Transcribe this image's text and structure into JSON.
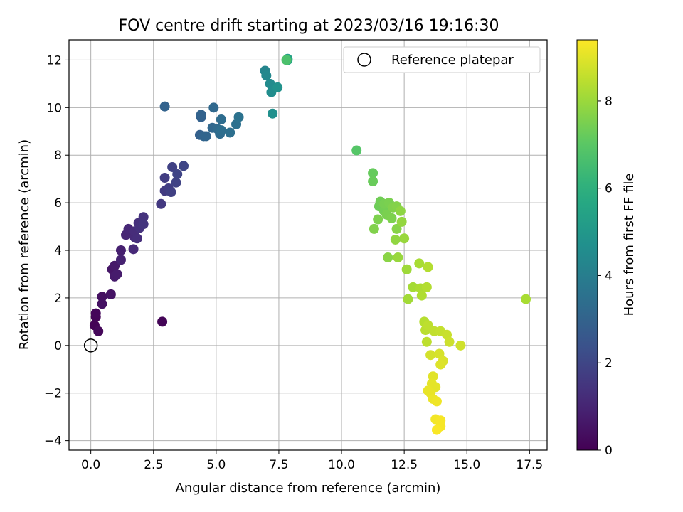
{
  "chart_data": {
    "type": "scatter",
    "title": "FOV centre drift starting at 2023/03/16 19:16:30",
    "xlabel": "Angular distance from reference (arcmin)",
    "ylabel": "Rotation from reference (arcmin)",
    "xlim": [
      -0.87,
      18.2
    ],
    "ylim": [
      -4.4,
      12.85
    ],
    "xticks": [
      0.0,
      2.5,
      5.0,
      7.5,
      10.0,
      12.5,
      15.0,
      17.5
    ],
    "xtick_labels": [
      "0.0",
      "2.5",
      "5.0",
      "7.5",
      "10.0",
      "12.5",
      "15.0",
      "17.5"
    ],
    "yticks": [
      -4,
      -2,
      0,
      2,
      4,
      6,
      8,
      10,
      12
    ],
    "ytick_labels": [
      "−4",
      "−2",
      "0",
      "2",
      "4",
      "6",
      "8",
      "10",
      "12"
    ],
    "grid": true,
    "legend": {
      "position": "top-right",
      "entries": [
        "Reference platepar"
      ]
    },
    "reference_point": {
      "x": 0,
      "y": 0
    },
    "colorbar": {
      "label": "Hours from first FF file",
      "colormap": "viridis",
      "range": [
        0,
        9.4
      ],
      "ticks": [
        0,
        2,
        4,
        6,
        8
      ],
      "tick_labels": [
        "0",
        "2",
        "4",
        "6",
        "8"
      ]
    },
    "points": [
      {
        "x": 0.15,
        "y": 0.85,
        "h": 0.05
      },
      {
        "x": 0.2,
        "y": 1.2,
        "h": 0.1
      },
      {
        "x": 0.2,
        "y": 1.35,
        "h": 0.15
      },
      {
        "x": 0.3,
        "y": 0.6,
        "h": 0.2
      },
      {
        "x": 2.85,
        "y": 1.0,
        "h": 0.1
      },
      {
        "x": 0.45,
        "y": 2.05,
        "h": 0.4
      },
      {
        "x": 0.45,
        "y": 1.75,
        "h": 0.45
      },
      {
        "x": 0.8,
        "y": 2.15,
        "h": 0.5
      },
      {
        "x": 0.85,
        "y": 3.2,
        "h": 0.6
      },
      {
        "x": 0.95,
        "y": 3.35,
        "h": 0.65
      },
      {
        "x": 0.95,
        "y": 2.9,
        "h": 0.7
      },
      {
        "x": 1.05,
        "y": 3.0,
        "h": 0.75
      },
      {
        "x": 1.2,
        "y": 4.0,
        "h": 0.85
      },
      {
        "x": 1.2,
        "y": 3.6,
        "h": 0.9
      },
      {
        "x": 1.4,
        "y": 4.65,
        "h": 1.0
      },
      {
        "x": 1.5,
        "y": 4.9,
        "h": 1.05
      },
      {
        "x": 1.7,
        "y": 4.05,
        "h": 1.1
      },
      {
        "x": 1.75,
        "y": 4.55,
        "h": 1.15
      },
      {
        "x": 1.75,
        "y": 4.8,
        "h": 1.2
      },
      {
        "x": 1.85,
        "y": 4.5,
        "h": 1.25
      },
      {
        "x": 1.9,
        "y": 5.15,
        "h": 1.3
      },
      {
        "x": 1.95,
        "y": 4.95,
        "h": 1.35
      },
      {
        "x": 2.1,
        "y": 5.4,
        "h": 1.4
      },
      {
        "x": 2.1,
        "y": 5.1,
        "h": 1.45
      },
      {
        "x": 2.8,
        "y": 5.95,
        "h": 1.6
      },
      {
        "x": 2.95,
        "y": 6.5,
        "h": 1.65
      },
      {
        "x": 2.95,
        "y": 7.05,
        "h": 1.7
      },
      {
        "x": 3.1,
        "y": 6.6,
        "h": 1.75
      },
      {
        "x": 3.2,
        "y": 6.45,
        "h": 1.8
      },
      {
        "x": 3.25,
        "y": 7.5,
        "h": 1.85
      },
      {
        "x": 3.4,
        "y": 6.85,
        "h": 1.9
      },
      {
        "x": 3.45,
        "y": 7.2,
        "h": 1.95
      },
      {
        "x": 3.7,
        "y": 7.55,
        "h": 2.0
      },
      {
        "x": 2.95,
        "y": 10.05,
        "h": 3.0
      },
      {
        "x": 4.35,
        "y": 8.85,
        "h": 2.9
      },
      {
        "x": 4.4,
        "y": 9.6,
        "h": 2.95
      },
      {
        "x": 4.4,
        "y": 9.7,
        "h": 3.0
      },
      {
        "x": 4.5,
        "y": 8.8,
        "h": 3.05
      },
      {
        "x": 4.6,
        "y": 8.8,
        "h": 3.1
      },
      {
        "x": 4.85,
        "y": 9.15,
        "h": 3.15
      },
      {
        "x": 4.9,
        "y": 10.0,
        "h": 3.2
      },
      {
        "x": 5.05,
        "y": 9.1,
        "h": 3.25
      },
      {
        "x": 5.15,
        "y": 8.9,
        "h": 3.3
      },
      {
        "x": 5.2,
        "y": 9.5,
        "h": 3.35
      },
      {
        "x": 5.2,
        "y": 9.05,
        "h": 3.4
      },
      {
        "x": 5.55,
        "y": 8.95,
        "h": 3.45
      },
      {
        "x": 5.8,
        "y": 9.3,
        "h": 3.5
      },
      {
        "x": 5.9,
        "y": 9.6,
        "h": 3.55
      },
      {
        "x": 6.95,
        "y": 11.55,
        "h": 4.3
      },
      {
        "x": 7.0,
        "y": 11.35,
        "h": 4.4
      },
      {
        "x": 7.15,
        "y": 11.0,
        "h": 4.5
      },
      {
        "x": 7.2,
        "y": 10.65,
        "h": 4.6
      },
      {
        "x": 7.25,
        "y": 9.75,
        "h": 4.7
      },
      {
        "x": 7.45,
        "y": 10.85,
        "h": 4.8
      },
      {
        "x": 7.85,
        "y": 12.05,
        "h": 5.3
      },
      {
        "x": 7.85,
        "y": 12.0,
        "h": 5.6
      },
      {
        "x": 7.8,
        "y": 12.0,
        "h": 6.7
      },
      {
        "x": 10.6,
        "y": 8.2,
        "h": 6.9
      },
      {
        "x": 11.25,
        "y": 7.25,
        "h": 7.2
      },
      {
        "x": 11.25,
        "y": 6.9,
        "h": 7.25
      },
      {
        "x": 11.5,
        "y": 5.85,
        "h": 7.3
      },
      {
        "x": 11.55,
        "y": 6.05,
        "h": 7.35
      },
      {
        "x": 11.7,
        "y": 5.65,
        "h": 7.4
      },
      {
        "x": 11.7,
        "y": 5.95,
        "h": 7.45
      },
      {
        "x": 11.8,
        "y": 5.5,
        "h": 7.5
      },
      {
        "x": 11.9,
        "y": 6.0,
        "h": 7.5
      },
      {
        "x": 12.0,
        "y": 5.35,
        "h": 7.55
      },
      {
        "x": 12.05,
        "y": 5.8,
        "h": 7.6
      },
      {
        "x": 12.2,
        "y": 5.85,
        "h": 7.65
      },
      {
        "x": 12.2,
        "y": 4.9,
        "h": 7.7
      },
      {
        "x": 11.45,
        "y": 5.3,
        "h": 7.55
      },
      {
        "x": 11.3,
        "y": 4.9,
        "h": 7.6
      },
      {
        "x": 12.35,
        "y": 5.65,
        "h": 7.8
      },
      {
        "x": 12.4,
        "y": 5.2,
        "h": 7.9
      },
      {
        "x": 12.5,
        "y": 4.5,
        "h": 7.95
      },
      {
        "x": 12.15,
        "y": 4.45,
        "h": 7.85
      },
      {
        "x": 11.85,
        "y": 3.7,
        "h": 7.75
      },
      {
        "x": 12.25,
        "y": 3.7,
        "h": 7.95
      },
      {
        "x": 12.6,
        "y": 3.2,
        "h": 8.05
      },
      {
        "x": 12.65,
        "y": 1.95,
        "h": 8.1
      },
      {
        "x": 12.85,
        "y": 2.45,
        "h": 8.15
      },
      {
        "x": 13.1,
        "y": 3.45,
        "h": 8.2
      },
      {
        "x": 13.15,
        "y": 2.4,
        "h": 8.25
      },
      {
        "x": 13.2,
        "y": 2.1,
        "h": 8.3
      },
      {
        "x": 13.4,
        "y": 2.45,
        "h": 8.35
      },
      {
        "x": 13.45,
        "y": 3.3,
        "h": 8.35
      },
      {
        "x": 13.3,
        "y": 1.0,
        "h": 8.4
      },
      {
        "x": 13.35,
        "y": 0.65,
        "h": 8.45
      },
      {
        "x": 13.45,
        "y": 0.85,
        "h": 8.5
      },
      {
        "x": 13.4,
        "y": 0.15,
        "h": 8.5
      },
      {
        "x": 13.7,
        "y": 0.6,
        "h": 8.55
      },
      {
        "x": 13.95,
        "y": 0.6,
        "h": 8.6
      },
      {
        "x": 14.2,
        "y": 0.45,
        "h": 8.65
      },
      {
        "x": 14.3,
        "y": 0.15,
        "h": 8.7
      },
      {
        "x": 14.75,
        "y": 0.0,
        "h": 8.75
      },
      {
        "x": 13.55,
        "y": -0.4,
        "h": 8.8
      },
      {
        "x": 13.9,
        "y": -0.35,
        "h": 8.85
      },
      {
        "x": 14.05,
        "y": -0.65,
        "h": 8.9
      },
      {
        "x": 13.95,
        "y": -0.8,
        "h": 8.95
      },
      {
        "x": 13.65,
        "y": -1.3,
        "h": 9.0
      },
      {
        "x": 13.6,
        "y": -1.6,
        "h": 9.05
      },
      {
        "x": 13.75,
        "y": -1.75,
        "h": 9.05
      },
      {
        "x": 13.45,
        "y": -1.9,
        "h": 9.1
      },
      {
        "x": 13.55,
        "y": -2.0,
        "h": 9.1
      },
      {
        "x": 13.65,
        "y": -2.25,
        "h": 9.15
      },
      {
        "x": 13.8,
        "y": -2.35,
        "h": 9.2
      },
      {
        "x": 13.75,
        "y": -3.1,
        "h": 9.25
      },
      {
        "x": 13.95,
        "y": -3.15,
        "h": 9.3
      },
      {
        "x": 13.95,
        "y": -3.4,
        "h": 9.3
      },
      {
        "x": 13.8,
        "y": -3.55,
        "h": 9.35
      },
      {
        "x": 17.35,
        "y": 1.95,
        "h": 8.2
      }
    ]
  }
}
